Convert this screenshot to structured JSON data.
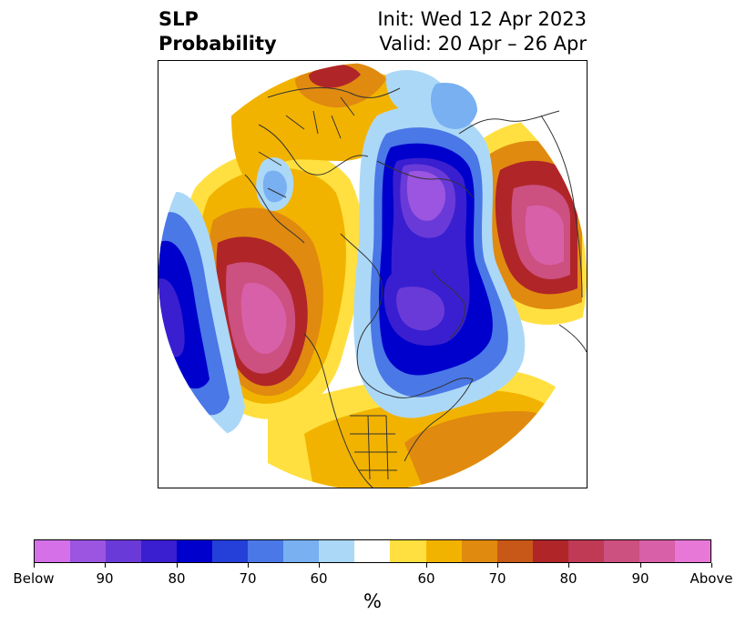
{
  "title": {
    "line1": "SLP",
    "line2": "Probability"
  },
  "info": {
    "init": "Init: Wed 12 Apr 2023",
    "valid": "Valid: 20 Apr – 26 Apr"
  },
  "colorbar": {
    "colors": [
      "#d570e8",
      "#9b55e0",
      "#6a3ad8",
      "#3a1fd0",
      "#0000cc",
      "#2440d8",
      "#4a78e6",
      "#78b0f2",
      "#acd8f8",
      "#ffffff",
      "#ffe040",
      "#f2b300",
      "#e08a10",
      "#c85818",
      "#b02528",
      "#c03a56",
      "#cc5080",
      "#d860a8",
      "#e878d8"
    ],
    "labels": [
      "Below",
      "90",
      "80",
      "70",
      "60",
      "60",
      "70",
      "80",
      "90",
      "Above"
    ],
    "unit": "%"
  },
  "map": {
    "projection": "north-polar-stereographic",
    "below_color": "#0000cc",
    "above_color": "#b02528",
    "boundary_color": "#333333"
  }
}
